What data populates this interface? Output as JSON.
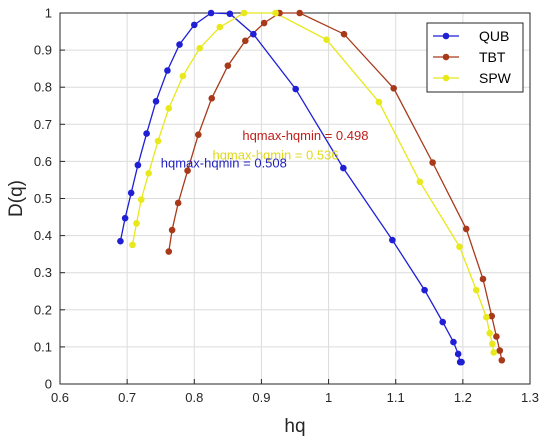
{
  "chart_data": {
    "type": "line",
    "title": "",
    "xlabel": "hq",
    "ylabel": "D(q)",
    "xlim": [
      0.6,
      1.3
    ],
    "ylim": [
      0,
      1
    ],
    "xticks": [
      0.6,
      0.7,
      0.8,
      0.9,
      1,
      1.1,
      1.2,
      1.3
    ],
    "xtick_labels": [
      "0.6",
      "0.7",
      "0.8",
      "0.9",
      "1",
      "1.1",
      "1.2",
      "1.3"
    ],
    "yticks": [
      0,
      0.1,
      0.2,
      0.3,
      0.4,
      0.5,
      0.6,
      0.7,
      0.8,
      0.9,
      1
    ],
    "ytick_labels": [
      "0",
      "0.1",
      "0.2",
      "0.3",
      "0.4",
      "0.5",
      "0.6",
      "0.7",
      "0.8",
      "0.9",
      "1"
    ],
    "grid": true,
    "legend_position": "top-right",
    "series": [
      {
        "name": "QUB",
        "color": "#1f1fd6",
        "x": [
          0.69,
          0.697,
          0.706,
          0.716,
          0.729,
          0.743,
          0.76,
          0.778,
          0.8,
          0.825,
          0.853,
          0.888,
          0.951,
          1.022,
          1.095,
          1.143,
          1.17,
          1.186,
          1.193,
          1.196,
          1.198
        ],
        "y": [
          0.385,
          0.447,
          0.515,
          0.59,
          0.675,
          0.762,
          0.845,
          0.915,
          0.968,
          1.0,
          0.998,
          0.943,
          0.795,
          0.582,
          0.388,
          0.253,
          0.167,
          0.113,
          0.081,
          0.059,
          0.059
        ]
      },
      {
        "name": "TBT",
        "color": "#a83a1a",
        "x": [
          0.762,
          0.767,
          0.776,
          0.79,
          0.806,
          0.826,
          0.85,
          0.876,
          0.904,
          0.927,
          0.957,
          1.023,
          1.097,
          1.155,
          1.205,
          1.23,
          1.243,
          1.25,
          1.255,
          1.258
        ],
        "y": [
          0.357,
          0.415,
          0.488,
          0.575,
          0.672,
          0.77,
          0.858,
          0.925,
          0.973,
          1.0,
          1.0,
          0.943,
          0.797,
          0.597,
          0.418,
          0.283,
          0.183,
          0.128,
          0.09,
          0.064
        ]
      },
      {
        "name": "SPW",
        "color": "#e8e81a",
        "x": [
          0.708,
          0.714,
          0.721,
          0.732,
          0.746,
          0.762,
          0.783,
          0.808,
          0.838,
          0.874,
          0.921,
          0.997,
          1.075,
          1.136,
          1.195,
          1.22,
          1.235,
          1.24,
          1.244,
          1.246
        ],
        "y": [
          0.375,
          0.433,
          0.497,
          0.568,
          0.655,
          0.743,
          0.83,
          0.905,
          0.962,
          1.0,
          1.0,
          0.928,
          0.76,
          0.545,
          0.37,
          0.253,
          0.18,
          0.137,
          0.108,
          0.085
        ]
      }
    ],
    "annotations": [
      {
        "text": "hqmax-hqmin = 0.498",
        "x": 0.9655,
        "y": 0.658,
        "color": "#c0201a"
      },
      {
        "text": "hqmax-hqmin = 0.536",
        "x": 0.921,
        "y": 0.605,
        "color": "#e0d818"
      },
      {
        "text": "hqmax-hqmin = 0.508",
        "x": 0.844,
        "y": 0.583,
        "color": "#1f1fc0"
      }
    ]
  }
}
